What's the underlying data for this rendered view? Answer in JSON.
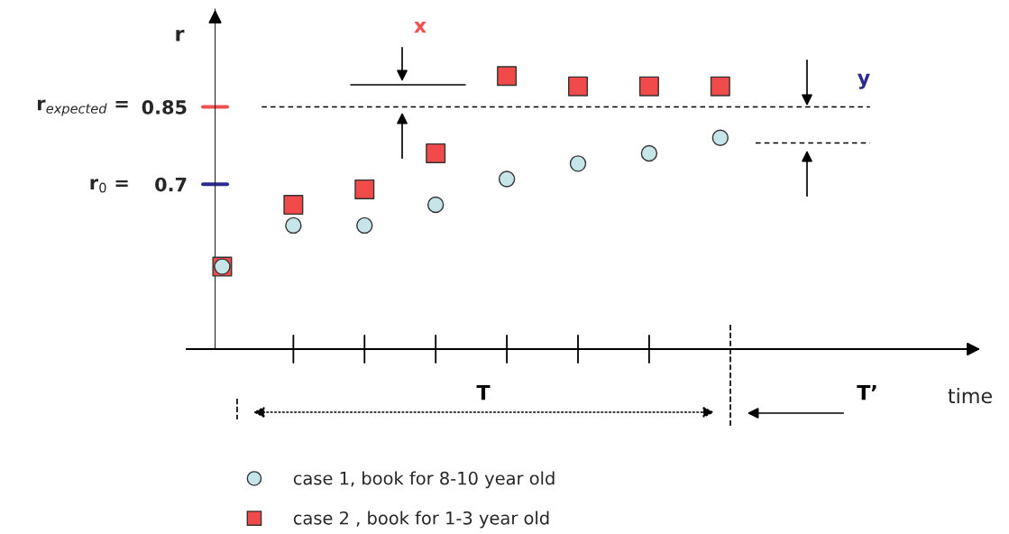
{
  "chart_data": {
    "type": "scatter",
    "xlabel": "time",
    "ylabel": "r",
    "categories": [
      null,
      null,
      null,
      null,
      null,
      null,
      null,
      null,
      null,
      null,
      null
    ],
    "series": [
      {
        "name": "case 1, book for 8-10 year old",
        "color": "#c5e5e8",
        "marker": "circle",
        "values": [
          0.54,
          0.62,
          0.62,
          0.66,
          0.71,
          0.74,
          0.76,
          0.79,
          null,
          null,
          null
        ]
      },
      {
        "name": "case 2 , book for 1-3 year old",
        "color": "#f04a4a",
        "marker": "square",
        "values": [
          0.54,
          0.66,
          0.69,
          0.76,
          0.91,
          0.89,
          0.89,
          0.89,
          null,
          null,
          null
        ]
      }
    ],
    "ylim": [
      0.38,
      1.04
    ],
    "yticks": [
      0.7,
      0.85
    ],
    "ref_lines": [
      {
        "axis": "y",
        "value": 0.85,
        "line_style": "dashed",
        "color": "#000000"
      },
      {
        "axis": "y",
        "value": 0.78,
        "line_style": "dashed",
        "color": "#000000"
      }
    ],
    "annotations": [
      "x",
      "y",
      "T",
      "T’",
      "r$_{0}$ =",
      "r$_{expected}$ ="
    ],
    "legend": "bottom",
    "grid": false
  }
}
